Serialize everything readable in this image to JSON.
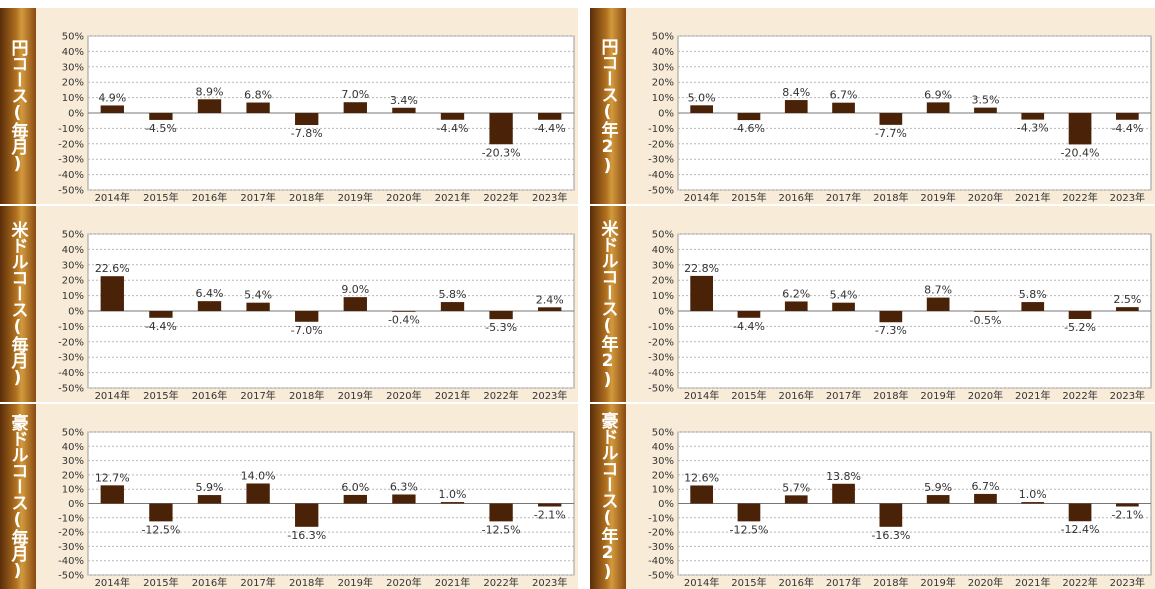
{
  "colors": {
    "bar": "#4a2208",
    "panel_bg": "#f8ecd9",
    "plot_bg": "#ffffff",
    "grid": "#b8b8b8",
    "text": "#333333"
  },
  "chart_data": [
    {
      "type": "bar",
      "side_label": "円コース(毎月)",
      "categories": [
        "2014年",
        "2015年",
        "2016年",
        "2017年",
        "2018年",
        "2019年",
        "2020年",
        "2021年",
        "2022年",
        "2023年"
      ],
      "values": [
        4.9,
        -4.5,
        8.9,
        6.8,
        -7.8,
        7.0,
        3.4,
        -4.4,
        -20.3,
        -4.4
      ],
      "value_labels": [
        "4.9%",
        "-4.5%",
        "8.9%",
        "6.8%",
        "-7.8%",
        "7.0%",
        "3.4%",
        "-4.4%",
        "-20.3%",
        "-4.4%"
      ],
      "yticks": [
        "50%",
        "40%",
        "30%",
        "20%",
        "10%",
        "0%",
        "-10%",
        "-20%",
        "-30%",
        "-40%",
        "-50%"
      ],
      "ylim": [
        -50,
        50
      ],
      "grid": true
    },
    {
      "type": "bar",
      "side_label": "円コース(年2)",
      "categories": [
        "2014年",
        "2015年",
        "2016年",
        "2017年",
        "2018年",
        "2019年",
        "2020年",
        "2021年",
        "2022年",
        "2023年"
      ],
      "values": [
        5.0,
        -4.6,
        8.4,
        6.7,
        -7.7,
        6.9,
        3.5,
        -4.3,
        -20.4,
        -4.4
      ],
      "value_labels": [
        "5.0%",
        "-4.6%",
        "8.4%",
        "6.7%",
        "-7.7%",
        "6.9%",
        "3.5%",
        "-4.3%",
        "-20.4%",
        "-4.4%"
      ],
      "yticks": [
        "50%",
        "40%",
        "30%",
        "20%",
        "10%",
        "0%",
        "-10%",
        "-20%",
        "-30%",
        "-40%",
        "-50%"
      ],
      "ylim": [
        -50,
        50
      ],
      "grid": true
    },
    {
      "type": "bar",
      "side_label": "米ドルコース(毎月)",
      "categories": [
        "2014年",
        "2015年",
        "2016年",
        "2017年",
        "2018年",
        "2019年",
        "2020年",
        "2021年",
        "2022年",
        "2023年"
      ],
      "values": [
        22.6,
        -4.4,
        6.4,
        5.4,
        -7.0,
        9.0,
        -0.4,
        5.8,
        -5.3,
        2.4
      ],
      "value_labels": [
        "22.6%",
        "-4.4%",
        "6.4%",
        "5.4%",
        "-7.0%",
        "9.0%",
        "-0.4%",
        "5.8%",
        "-5.3%",
        "2.4%"
      ],
      "yticks": [
        "50%",
        "40%",
        "30%",
        "20%",
        "10%",
        "0%",
        "-10%",
        "-20%",
        "-30%",
        "-40%",
        "-50%"
      ],
      "ylim": [
        -50,
        50
      ],
      "grid": true
    },
    {
      "type": "bar",
      "side_label": "米ドルコース(年2)",
      "categories": [
        "2014年",
        "2015年",
        "2016年",
        "2017年",
        "2018年",
        "2019年",
        "2020年",
        "2021年",
        "2022年",
        "2023年"
      ],
      "values": [
        22.8,
        -4.4,
        6.2,
        5.4,
        -7.3,
        8.7,
        -0.5,
        5.8,
        -5.2,
        2.5
      ],
      "value_labels": [
        "22.8%",
        "-4.4%",
        "6.2%",
        "5.4%",
        "-7.3%",
        "8.7%",
        "-0.5%",
        "5.8%",
        "-5.2%",
        "2.5%"
      ],
      "yticks": [
        "50%",
        "40%",
        "30%",
        "20%",
        "10%",
        "0%",
        "-10%",
        "-20%",
        "-30%",
        "-40%",
        "-50%"
      ],
      "ylim": [
        -50,
        50
      ],
      "grid": true
    },
    {
      "type": "bar",
      "side_label": "豪ドルコース(毎月)",
      "categories": [
        "2014年",
        "2015年",
        "2016年",
        "2017年",
        "2018年",
        "2019年",
        "2020年",
        "2021年",
        "2022年",
        "2023年"
      ],
      "values": [
        12.7,
        -12.5,
        5.9,
        14.0,
        -16.3,
        6.0,
        6.3,
        1.0,
        -12.5,
        -2.1
      ],
      "value_labels": [
        "12.7%",
        "-12.5%",
        "5.9%",
        "14.0%",
        "-16.3%",
        "6.0%",
        "6.3%",
        "1.0%",
        "-12.5%",
        "-2.1%"
      ],
      "yticks": [
        "50%",
        "40%",
        "30%",
        "20%",
        "10%",
        "0%",
        "-10%",
        "-20%",
        "-30%",
        "-40%",
        "-50%"
      ],
      "ylim": [
        -50,
        50
      ],
      "grid": true
    },
    {
      "type": "bar",
      "side_label": "豪ドルコース(年2)",
      "categories": [
        "2014年",
        "2015年",
        "2016年",
        "2017年",
        "2018年",
        "2019年",
        "2020年",
        "2021年",
        "2022年",
        "2023年"
      ],
      "values": [
        12.6,
        -12.5,
        5.7,
        13.8,
        -16.3,
        5.9,
        6.7,
        1.0,
        -12.4,
        -2.1
      ],
      "value_labels": [
        "12.6%",
        "-12.5%",
        "5.7%",
        "13.8%",
        "-16.3%",
        "5.9%",
        "6.7%",
        "1.0%",
        "-12.4%",
        "-2.1%"
      ],
      "yticks": [
        "50%",
        "40%",
        "30%",
        "20%",
        "10%",
        "0%",
        "-10%",
        "-20%",
        "-30%",
        "-40%",
        "-50%"
      ],
      "ylim": [
        -50,
        50
      ],
      "grid": true
    }
  ]
}
